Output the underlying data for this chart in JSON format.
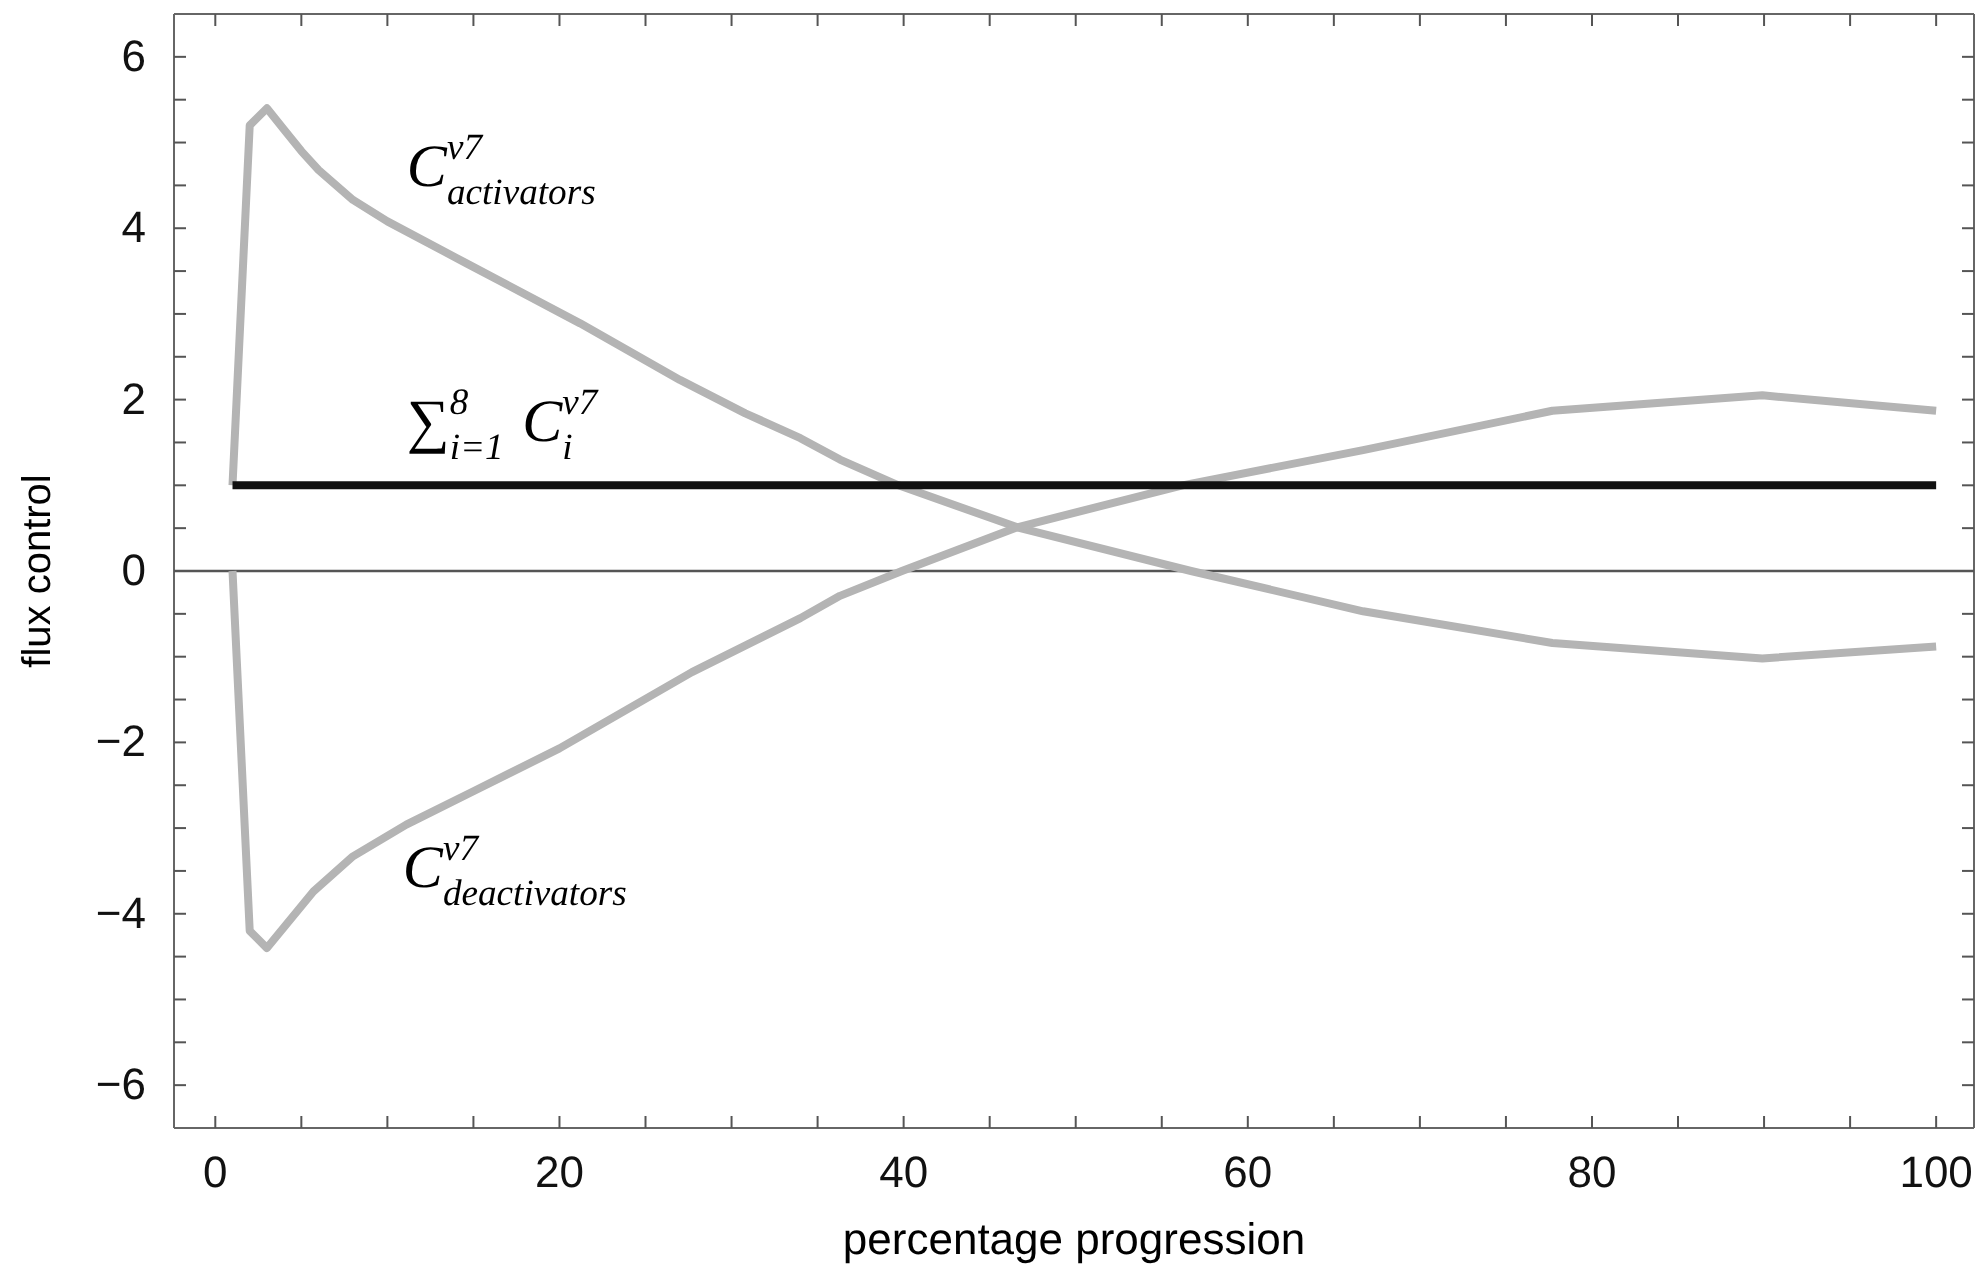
{
  "chart_data": {
    "type": "line",
    "xlabel": "percentage progression",
    "ylabel": "flux control",
    "xlim": [
      -2.4,
      102.2
    ],
    "ylim": [
      -6.5,
      6.5
    ],
    "xticks": [
      0,
      {
        "value": 5,
        "label": null
      },
      {
        "value": 10,
        "label": null
      },
      {
        "value": 15,
        "label": null
      },
      20,
      {
        "value": 25,
        "label": null
      },
      {
        "value": 30,
        "label": null
      },
      {
        "value": 35,
        "label": null
      },
      40,
      {
        "value": 45,
        "label": null
      },
      {
        "value": 50,
        "label": null
      },
      {
        "value": 55,
        "label": null
      },
      60,
      {
        "value": 65,
        "label": null
      },
      {
        "value": 70,
        "label": null
      },
      {
        "value": 75,
        "label": null
      },
      80,
      {
        "value": 85,
        "label": null
      },
      {
        "value": 90,
        "label": null
      },
      {
        "value": 95,
        "label": null
      },
      100
    ],
    "yticks": [
      -6,
      {
        "value": -5.5,
        "label": null
      },
      {
        "value": -5,
        "label": null
      },
      {
        "value": -4.5,
        "label": null
      },
      -4,
      {
        "value": -3.5,
        "label": null
      },
      {
        "value": -3,
        "label": null
      },
      {
        "value": -2.5,
        "label": null
      },
      -2,
      {
        "value": -1.5,
        "label": null
      },
      {
        "value": -1,
        "label": null
      },
      {
        "value": -0.5,
        "label": null
      },
      0,
      {
        "value": 0.5,
        "label": null
      },
      {
        "value": 1,
        "label": null
      },
      {
        "value": 1.5,
        "label": null
      },
      2,
      {
        "value": 2.5,
        "label": null
      },
      {
        "value": 3,
        "label": null
      },
      {
        "value": 3.5,
        "label": null
      },
      4,
      {
        "value": 4.5,
        "label": null
      },
      {
        "value": 5,
        "label": null
      },
      {
        "value": 5.5,
        "label": null
      },
      6
    ],
    "grid": false,
    "legend": false,
    "marker": "none",
    "line_style": "solid",
    "ref_lines": [
      {
        "axis": "y",
        "value": 0,
        "color": "#555555"
      }
    ],
    "series": [
      {
        "name": "C$^{v7}$$_{activators}$",
        "color": "#b4b4b4",
        "x": [
          1,
          2,
          3,
          4,
          5,
          6,
          8,
          10,
          14.6,
          21.2,
          27,
          30.8,
          34,
          36.3,
          39.7,
          46.6,
          56.7,
          66.7,
          77.7,
          89.9,
          100
        ],
        "values": [
          1,
          5.2,
          5.4,
          5.15,
          4.9,
          4.68,
          4.33,
          4.08,
          3.59,
          2.89,
          2.23,
          1.84,
          1.55,
          1.3,
          1.0,
          0.51,
          0,
          -0.47,
          -0.84,
          -1.02,
          -0.88
        ]
      },
      {
        "name": "C$^{v7}$$_{deactivators}$",
        "color": "#b4b4b4",
        "x": [
          1,
          2,
          3,
          5.7,
          8,
          11.1,
          15,
          20,
          27.7,
          34,
          36.3,
          39.9,
          46.6,
          56.2,
          66.7,
          77.7,
          89.9,
          100
        ],
        "values": [
          0,
          -4.2,
          -4.4,
          -3.74,
          -3.33,
          -2.96,
          -2.57,
          -2.07,
          -1.18,
          -0.55,
          -0.29,
          0,
          0.51,
          1.0,
          1.41,
          1.87,
          2.05,
          1.87
        ]
      },
      {
        "name": "∑$^{8}$$_{i=1}$C$^{v7}$$_{i}$",
        "color": "#111111",
        "x": [
          1,
          100
        ],
        "values": [
          1,
          1
        ]
      }
    ]
  }
}
